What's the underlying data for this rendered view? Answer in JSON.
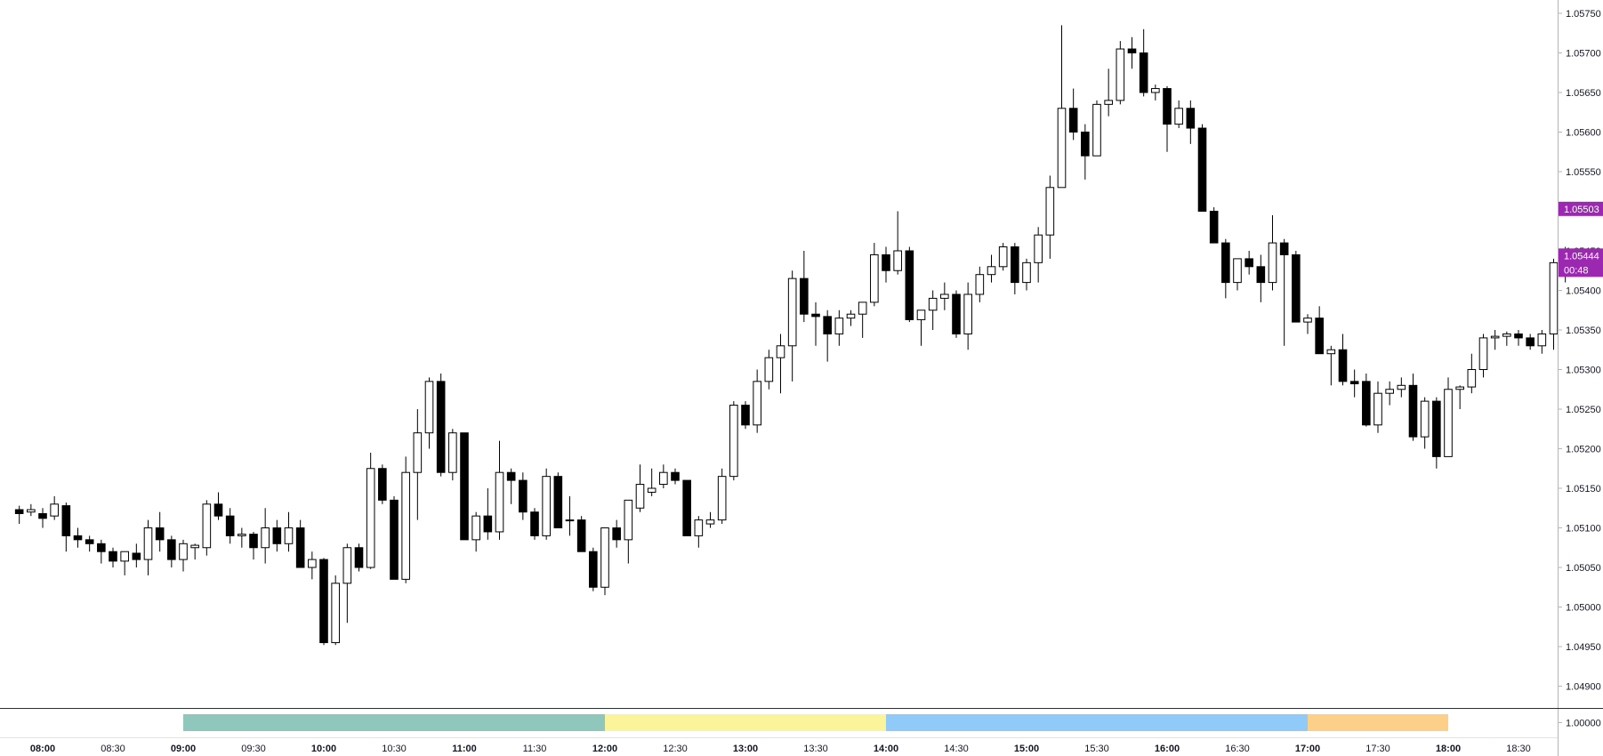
{
  "chart_data": {
    "type": "candlestick",
    "colors": {
      "up_body": "#ffffff",
      "down_body": "#000000",
      "wick": "#000000",
      "price_badge": "#9c27b0",
      "sessions": [
        "#8fc7bd",
        "#fbf49a",
        "#90caf9",
        "#fdd08a"
      ]
    },
    "y_axis": {
      "range": [
        1.0485,
        1.0578
      ],
      "ticks": [
        "1.05750",
        "1.05700",
        "1.05650",
        "1.05600",
        "1.05550",
        "1.05500",
        "1.05450",
        "1.05400",
        "1.05350",
        "1.05300",
        "1.05250",
        "1.05200",
        "1.05150",
        "1.05100",
        "1.05050",
        "1.05000",
        "1.04950",
        "1.04900"
      ]
    },
    "time_axis": {
      "minutes_per_candle": 5,
      "first_candle": "07:50",
      "labels": [
        "08:00",
        "08:30",
        "09:00",
        "09:30",
        "10:00",
        "10:30",
        "11:00",
        "11:30",
        "12:00",
        "12:30",
        "13:00",
        "13:30",
        "14:00",
        "14:30",
        "15:00",
        "15:30",
        "16:00",
        "16:30",
        "17:00",
        "17:30",
        "18:00",
        "18:30"
      ]
    },
    "price_badges": [
      {
        "price": 1.05503,
        "label": "1.05503"
      },
      {
        "price": 1.05444,
        "label": "1.05444",
        "countdown": "00:48"
      }
    ],
    "indicator_pane": {
      "tick": "1.00000",
      "sessions": [
        {
          "start": "09:00",
          "end": "12:00"
        },
        {
          "start": "12:00",
          "end": "14:00"
        },
        {
          "start": "14:00",
          "end": "17:00"
        },
        {
          "start": "17:00",
          "end": "18:00"
        }
      ]
    },
    "candles": [
      [
        1.05123,
        1.05128,
        1.05105,
        1.05118
      ],
      [
        1.0512,
        1.0513,
        1.05115,
        1.05123
      ],
      [
        1.05118,
        1.05125,
        1.051,
        1.05112
      ],
      [
        1.05115,
        1.0514,
        1.0511,
        1.0513
      ],
      [
        1.05128,
        1.05132,
        1.0507,
        1.0509
      ],
      [
        1.0509,
        1.051,
        1.05075,
        1.05085
      ],
      [
        1.05085,
        1.0509,
        1.0507,
        1.0508
      ],
      [
        1.0508,
        1.05085,
        1.05055,
        1.0507
      ],
      [
        1.0507,
        1.05075,
        1.0505,
        1.05058
      ],
      [
        1.05058,
        1.0507,
        1.0504,
        1.0507
      ],
      [
        1.05068,
        1.0508,
        1.0505,
        1.0506
      ],
      [
        1.0506,
        1.0511,
        1.0504,
        1.051
      ],
      [
        1.051,
        1.0512,
        1.0507,
        1.05085
      ],
      [
        1.05085,
        1.0509,
        1.0505,
        1.0506
      ],
      [
        1.0506,
        1.05085,
        1.05045,
        1.0508
      ],
      [
        1.05075,
        1.0508,
        1.0506,
        1.05078
      ],
      [
        1.05075,
        1.05135,
        1.05065,
        1.0513
      ],
      [
        1.0513,
        1.05145,
        1.0511,
        1.05115
      ],
      [
        1.05115,
        1.05125,
        1.0508,
        1.0509
      ],
      [
        1.0509,
        1.051,
        1.05075,
        1.05092
      ],
      [
        1.05092,
        1.05095,
        1.0506,
        1.05075
      ],
      [
        1.05075,
        1.05125,
        1.05055,
        1.051
      ],
      [
        1.051,
        1.0511,
        1.0507,
        1.0508
      ],
      [
        1.0508,
        1.0512,
        1.0507,
        1.051
      ],
      [
        1.051,
        1.0511,
        1.0505,
        1.0505
      ],
      [
        1.0505,
        1.0507,
        1.05035,
        1.0506
      ],
      [
        1.0506,
        1.05062,
        1.04952,
        1.04955
      ],
      [
        1.04955,
        1.0504,
        1.04952,
        1.0503
      ],
      [
        1.0503,
        1.0508,
        1.0498,
        1.05075
      ],
      [
        1.05075,
        1.0508,
        1.05045,
        1.0505
      ],
      [
        1.0505,
        1.05195,
        1.05048,
        1.05175
      ],
      [
        1.05175,
        1.0518,
        1.0513,
        1.05135
      ],
      [
        1.05135,
        1.0514,
        1.05035,
        1.05035
      ],
      [
        1.05035,
        1.0519,
        1.0503,
        1.0517
      ],
      [
        1.0517,
        1.0525,
        1.0511,
        1.0522
      ],
      [
        1.0522,
        1.0529,
        1.052,
        1.05285
      ],
      [
        1.05285,
        1.05295,
        1.05165,
        1.0517
      ],
      [
        1.0517,
        1.05225,
        1.0516,
        1.0522
      ],
      [
        1.0522,
        1.0522,
        1.05085,
        1.05085
      ],
      [
        1.05085,
        1.0512,
        1.0507,
        1.05115
      ],
      [
        1.05115,
        1.0515,
        1.05085,
        1.05095
      ],
      [
        1.05095,
        1.0521,
        1.05085,
        1.0517
      ],
      [
        1.0517,
        1.05175,
        1.0513,
        1.0516
      ],
      [
        1.0516,
        1.0517,
        1.0511,
        1.0512
      ],
      [
        1.0512,
        1.05125,
        1.05085,
        1.0509
      ],
      [
        1.0509,
        1.05175,
        1.05085,
        1.05165
      ],
      [
        1.05165,
        1.0517,
        1.051,
        1.051
      ],
      [
        1.0511,
        1.0514,
        1.0509,
        1.0511
      ],
      [
        1.0511,
        1.05115,
        1.0507,
        1.0507
      ],
      [
        1.0507,
        1.05075,
        1.0502,
        1.05025
      ],
      [
        1.05025,
        1.051,
        1.05015,
        1.051
      ],
      [
        1.051,
        1.0511,
        1.05075,
        1.05085
      ],
      [
        1.05085,
        1.05135,
        1.05055,
        1.05135
      ],
      [
        1.05125,
        1.0518,
        1.0512,
        1.05155
      ],
      [
        1.05145,
        1.05175,
        1.0514,
        1.0515
      ],
      [
        1.05155,
        1.0518,
        1.0515,
        1.0517
      ],
      [
        1.0517,
        1.05175,
        1.05155,
        1.0516
      ],
      [
        1.0516,
        1.0516,
        1.0509,
        1.0509
      ],
      [
        1.0509,
        1.05115,
        1.05075,
        1.0511
      ],
      [
        1.05105,
        1.0512,
        1.051,
        1.0511
      ],
      [
        1.0511,
        1.05175,
        1.05105,
        1.05165
      ],
      [
        1.05165,
        1.0526,
        1.0516,
        1.05255
      ],
      [
        1.05255,
        1.0526,
        1.05225,
        1.0523
      ],
      [
        1.0523,
        1.053,
        1.0522,
        1.05285
      ],
      [
        1.05285,
        1.05325,
        1.05275,
        1.05315
      ],
      [
        1.05315,
        1.05345,
        1.0527,
        1.0533
      ],
      [
        1.0533,
        1.05425,
        1.05285,
        1.05415
      ],
      [
        1.05415,
        1.0545,
        1.0536,
        1.0537
      ],
      [
        1.0537,
        1.05385,
        1.0533,
        1.05367
      ],
      [
        1.05367,
        1.05375,
        1.0531,
        1.05345
      ],
      [
        1.05345,
        1.05375,
        1.0533,
        1.05365
      ],
      [
        1.05365,
        1.05375,
        1.05355,
        1.0537
      ],
      [
        1.0537,
        1.05385,
        1.0534,
        1.05385
      ],
      [
        1.05385,
        1.0546,
        1.0538,
        1.05445
      ],
      [
        1.05445,
        1.05455,
        1.0541,
        1.05425
      ],
      [
        1.05425,
        1.055,
        1.0542,
        1.0545
      ],
      [
        1.0545,
        1.05455,
        1.0536,
        1.05363
      ],
      [
        1.05363,
        1.0537,
        1.0533,
        1.05375
      ],
      [
        1.05375,
        1.054,
        1.0535,
        1.0539
      ],
      [
        1.0539,
        1.0541,
        1.05375,
        1.05395
      ],
      [
        1.05395,
        1.054,
        1.0534,
        1.05345
      ],
      [
        1.05345,
        1.0541,
        1.05325,
        1.05395
      ],
      [
        1.05395,
        1.0543,
        1.05385,
        1.0542
      ],
      [
        1.0542,
        1.05445,
        1.0541,
        1.0543
      ],
      [
        1.0543,
        1.0546,
        1.05425,
        1.05455
      ],
      [
        1.05455,
        1.0546,
        1.05395,
        1.0541
      ],
      [
        1.0541,
        1.0544,
        1.054,
        1.05435
      ],
      [
        1.05435,
        1.0548,
        1.0541,
        1.0547
      ],
      [
        1.0547,
        1.05545,
        1.0544,
        1.0553
      ],
      [
        1.0553,
        1.05735,
        1.0553,
        1.0563
      ],
      [
        1.0563,
        1.05655,
        1.0559,
        1.056
      ],
      [
        1.056,
        1.0561,
        1.0554,
        1.0557
      ],
      [
        1.0557,
        1.0564,
        1.05575,
        1.05635
      ],
      [
        1.05635,
        1.0568,
        1.0562,
        1.0564
      ],
      [
        1.0564,
        1.05715,
        1.05635,
        1.05705
      ],
      [
        1.05705,
        1.0572,
        1.0568,
        1.057
      ],
      [
        1.057,
        1.0573,
        1.05645,
        1.0565
      ],
      [
        1.0565,
        1.0566,
        1.0564,
        1.05655
      ],
      [
        1.05655,
        1.05658,
        1.05575,
        1.0561
      ],
      [
        1.0561,
        1.0564,
        1.05605,
        1.0563
      ],
      [
        1.0563,
        1.0564,
        1.05585,
        1.05605
      ],
      [
        1.05605,
        1.0561,
        1.055,
        1.055
      ],
      [
        1.055,
        1.05505,
        1.0546,
        1.0546
      ],
      [
        1.0546,
        1.05465,
        1.0539,
        1.0541
      ],
      [
        1.0541,
        1.0544,
        1.054,
        1.0544
      ],
      [
        1.0544,
        1.0545,
        1.0542,
        1.0543
      ],
      [
        1.0543,
        1.05445,
        1.05385,
        1.0541
      ],
      [
        1.0541,
        1.05495,
        1.054,
        1.0546
      ],
      [
        1.0546,
        1.05465,
        1.0533,
        1.05445
      ],
      [
        1.05445,
        1.0545,
        1.0536,
        1.0536
      ],
      [
        1.0536,
        1.0537,
        1.05345,
        1.05365
      ],
      [
        1.05365,
        1.0538,
        1.0532,
        1.0532
      ],
      [
        1.0532,
        1.0533,
        1.0528,
        1.05325
      ],
      [
        1.05325,
        1.05345,
        1.0528,
        1.05285
      ],
      [
        1.05285,
        1.053,
        1.05265,
        1.05282
      ],
      [
        1.05285,
        1.05295,
        1.05228,
        1.0523
      ],
      [
        1.0523,
        1.05285,
        1.0522,
        1.0527
      ],
      [
        1.0527,
        1.05285,
        1.05255,
        1.05275
      ],
      [
        1.05275,
        1.0529,
        1.05265,
        1.0528
      ],
      [
        1.0528,
        1.05295,
        1.0521,
        1.05215
      ],
      [
        1.05215,
        1.05265,
        1.052,
        1.0526
      ],
      [
        1.0526,
        1.05265,
        1.05175,
        1.0519
      ],
      [
        1.0519,
        1.0529,
        1.0519,
        1.05275
      ],
      [
        1.05275,
        1.0528,
        1.0525,
        1.05278
      ],
      [
        1.05278,
        1.0532,
        1.0527,
        1.053
      ],
      [
        1.053,
        1.05345,
        1.0529,
        1.0534
      ],
      [
        1.0534,
        1.0535,
        1.05325,
        1.05342
      ],
      [
        1.05342,
        1.05348,
        1.0533,
        1.05345
      ],
      [
        1.05345,
        1.0535,
        1.0533,
        1.0534
      ],
      [
        1.0534,
        1.05345,
        1.05325,
        1.0533
      ],
      [
        1.0533,
        1.0535,
        1.0532,
        1.05345
      ],
      [
        1.05345,
        1.0544,
        1.05325,
        1.05435
      ],
      [
        1.05435,
        1.05455,
        1.0541,
        1.05444
      ]
    ]
  }
}
